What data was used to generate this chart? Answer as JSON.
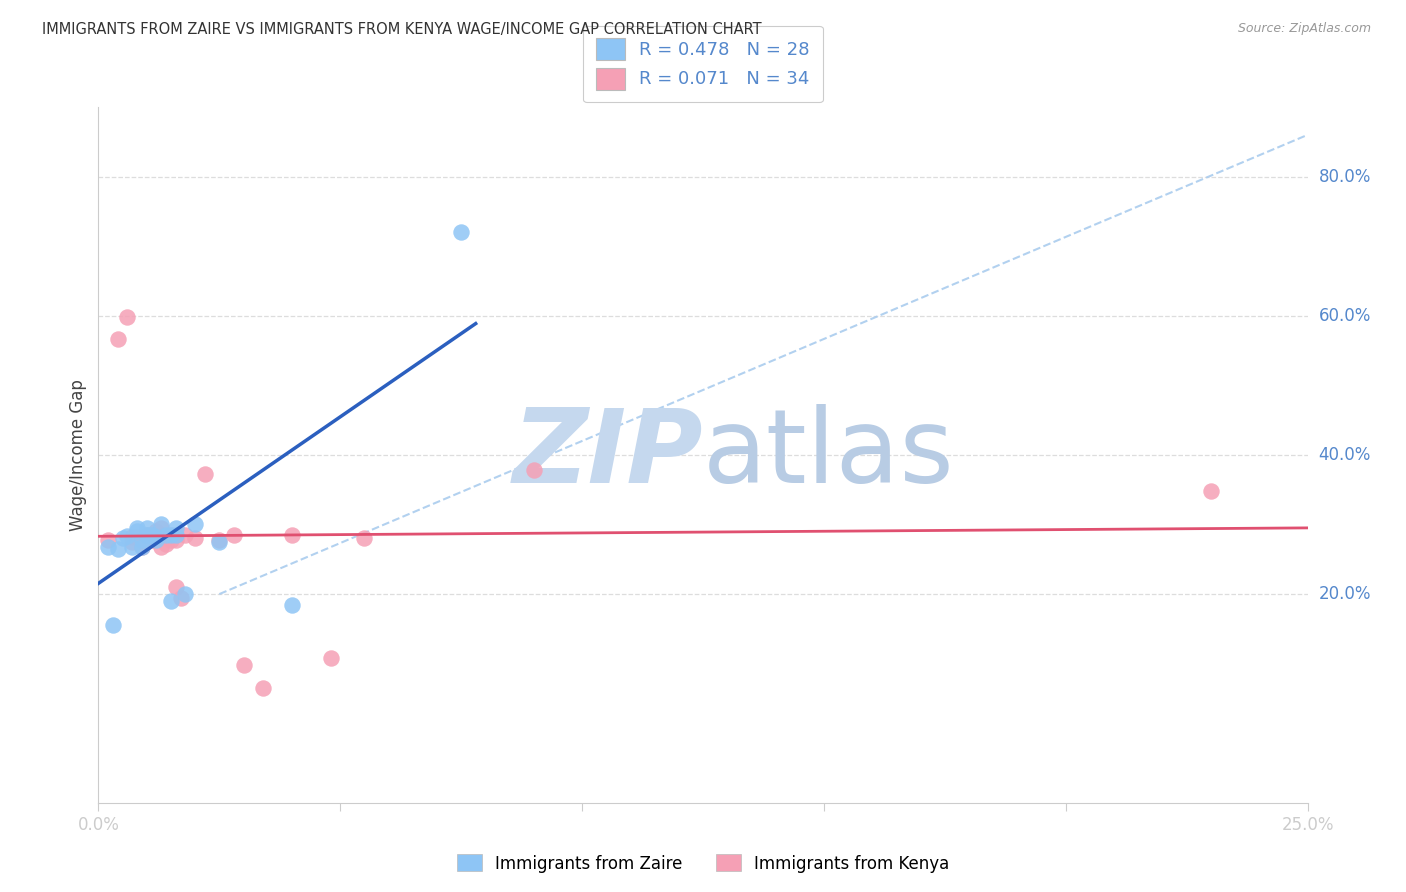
{
  "title": "IMMIGRANTS FROM ZAIRE VS IMMIGRANTS FROM KENYA WAGE/INCOME GAP CORRELATION CHART",
  "source": "Source: ZipAtlas.com",
  "ylabel": "Wage/Income Gap",
  "legend_label1": "Immigrants from Zaire",
  "legend_label2": "Immigrants from Kenya",
  "R_zaire": 0.478,
  "N_zaire": 28,
  "R_kenya": 0.071,
  "N_kenya": 34,
  "xlim": [
    0.0,
    0.25
  ],
  "ylim": [
    -0.1,
    0.9
  ],
  "color_zaire": "#8EC5F5",
  "color_kenya": "#F5A0B5",
  "color_zaire_line": "#2B5FBF",
  "color_kenya_line": "#E05070",
  "color_ref_line": "#AACCEE",
  "watermark_color": "#D8E8F5",
  "zaire_x": [
    0.002,
    0.003,
    0.004,
    0.005,
    0.006,
    0.007,
    0.008,
    0.008,
    0.009,
    0.009,
    0.01,
    0.01,
    0.01,
    0.011,
    0.011,
    0.012,
    0.012,
    0.013,
    0.014,
    0.015,
    0.015,
    0.016,
    0.016,
    0.018,
    0.02,
    0.025,
    0.04,
    0.075
  ],
  "zaire_y": [
    0.268,
    0.155,
    0.265,
    0.28,
    0.283,
    0.268,
    0.29,
    0.295,
    0.268,
    0.278,
    0.285,
    0.285,
    0.295,
    0.285,
    0.285,
    0.282,
    0.278,
    0.3,
    0.285,
    0.285,
    0.19,
    0.285,
    0.295,
    0.2,
    0.3,
    0.275,
    0.185,
    0.72
  ],
  "kenya_x": [
    0.002,
    0.004,
    0.006,
    0.007,
    0.007,
    0.008,
    0.009,
    0.009,
    0.01,
    0.01,
    0.011,
    0.011,
    0.012,
    0.013,
    0.013,
    0.013,
    0.014,
    0.015,
    0.015,
    0.016,
    0.016,
    0.017,
    0.018,
    0.02,
    0.022,
    0.025,
    0.028,
    0.03,
    0.034,
    0.04,
    0.048,
    0.055,
    0.09,
    0.23
  ],
  "kenya_y": [
    0.278,
    0.566,
    0.598,
    0.282,
    0.275,
    0.282,
    0.268,
    0.278,
    0.285,
    0.278,
    0.28,
    0.278,
    0.29,
    0.268,
    0.285,
    0.295,
    0.272,
    0.278,
    0.285,
    0.21,
    0.278,
    0.195,
    0.285,
    0.28,
    0.372,
    0.278,
    0.285,
    0.098,
    0.065,
    0.285,
    0.108,
    0.28,
    0.378,
    0.348
  ],
  "right_ytick_vals": [
    0.2,
    0.4,
    0.6,
    0.8
  ],
  "right_ytick_labels": [
    "20.0%",
    "40.0%",
    "60.0%",
    "80.0%"
  ],
  "gridline_y": [
    0.2,
    0.4,
    0.6,
    0.8
  ],
  "gridline_color": "#DDDDDD",
  "tick_color": "#5588CC",
  "text_color": "#444444",
  "axis_color": "#CCCCCC"
}
